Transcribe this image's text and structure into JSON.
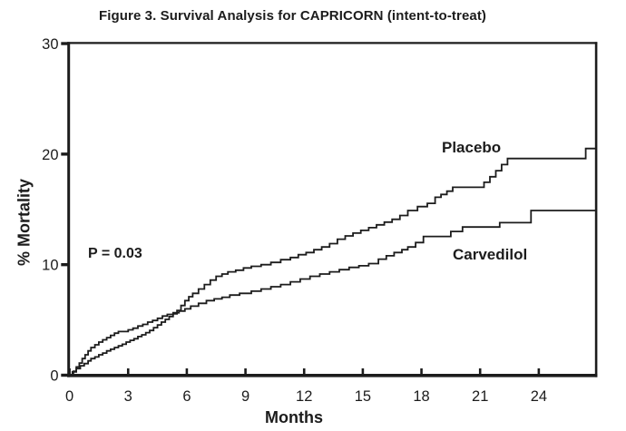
{
  "figure": {
    "title": "Figure 3. Survival Analysis for CAPRICORN (intent-to-treat)"
  },
  "chart_data": {
    "type": "line",
    "subtype": "kaplan-meier-step",
    "title": "Figure 3. Survival Analysis for CAPRICORN (intent-to-treat)",
    "xlabel": "Months",
    "ylabel": "% Mortality",
    "xlim": [
      0,
      27
    ],
    "ylim": [
      0,
      30
    ],
    "x_ticks": [
      0,
      3,
      6,
      9,
      12,
      15,
      18,
      21,
      24
    ],
    "y_ticks": [
      0,
      10,
      20,
      30
    ],
    "grid": false,
    "frame": "full-box",
    "annotation": "P = 0.03",
    "legend_position": "inline-labels",
    "colors": {
      "curve": "#1c1c1c",
      "text": "#1c1c1c",
      "background": "#ffffff"
    },
    "x_end": 26.9,
    "series": [
      {
        "name": "Placebo",
        "final_value_pct": 20.5,
        "points": [
          [
            0,
            0
          ],
          [
            0.15,
            0.3
          ],
          [
            0.35,
            0.6
          ],
          [
            0.55,
            0.85
          ],
          [
            0.75,
            1.05
          ],
          [
            0.95,
            1.3
          ],
          [
            1.1,
            1.5
          ],
          [
            1.3,
            1.65
          ],
          [
            1.5,
            1.85
          ],
          [
            1.7,
            2.0
          ],
          [
            1.9,
            2.2
          ],
          [
            2.1,
            2.35
          ],
          [
            2.3,
            2.5
          ],
          [
            2.5,
            2.65
          ],
          [
            2.7,
            2.8
          ],
          [
            2.9,
            3.0
          ],
          [
            3.1,
            3.15
          ],
          [
            3.3,
            3.3
          ],
          [
            3.5,
            3.5
          ],
          [
            3.7,
            3.65
          ],
          [
            3.9,
            3.85
          ],
          [
            4.1,
            4.05
          ],
          [
            4.3,
            4.3
          ],
          [
            4.5,
            4.55
          ],
          [
            4.7,
            4.8
          ],
          [
            4.9,
            5.05
          ],
          [
            5.1,
            5.3
          ],
          [
            5.3,
            5.55
          ],
          [
            5.5,
            5.85
          ],
          [
            5.7,
            6.3
          ],
          [
            5.9,
            6.75
          ],
          [
            6.1,
            7.1
          ],
          [
            6.3,
            7.4
          ],
          [
            6.6,
            7.8
          ],
          [
            6.9,
            8.2
          ],
          [
            7.2,
            8.6
          ],
          [
            7.5,
            8.95
          ],
          [
            7.8,
            9.15
          ],
          [
            8.1,
            9.35
          ],
          [
            8.5,
            9.5
          ],
          [
            8.9,
            9.7
          ],
          [
            9.3,
            9.85
          ],
          [
            9.8,
            10.0
          ],
          [
            10.3,
            10.2
          ],
          [
            10.8,
            10.45
          ],
          [
            11.3,
            10.65
          ],
          [
            11.7,
            10.9
          ],
          [
            12.1,
            11.1
          ],
          [
            12.5,
            11.35
          ],
          [
            12.9,
            11.6
          ],
          [
            13.3,
            11.9
          ],
          [
            13.7,
            12.3
          ],
          [
            14.1,
            12.6
          ],
          [
            14.5,
            12.85
          ],
          [
            14.9,
            13.1
          ],
          [
            15.3,
            13.35
          ],
          [
            15.7,
            13.6
          ],
          [
            16.1,
            13.85
          ],
          [
            16.5,
            14.1
          ],
          [
            16.9,
            14.45
          ],
          [
            17.3,
            14.9
          ],
          [
            17.8,
            15.25
          ],
          [
            18.3,
            15.55
          ],
          [
            18.7,
            16.1
          ],
          [
            19.0,
            16.35
          ],
          [
            19.3,
            16.65
          ],
          [
            19.6,
            17.0
          ],
          [
            21.2,
            17.45
          ],
          [
            21.5,
            17.95
          ],
          [
            21.8,
            18.5
          ],
          [
            22.1,
            19.05
          ],
          [
            22.4,
            19.6
          ],
          [
            26.4,
            20.5
          ]
        ]
      },
      {
        "name": "Carvedilol",
        "final_value_pct": 15.0,
        "points": [
          [
            0,
            0
          ],
          [
            0.2,
            0.35
          ],
          [
            0.35,
            0.75
          ],
          [
            0.5,
            1.1
          ],
          [
            0.65,
            1.5
          ],
          [
            0.8,
            1.85
          ],
          [
            0.95,
            2.2
          ],
          [
            1.1,
            2.5
          ],
          [
            1.3,
            2.75
          ],
          [
            1.5,
            3.0
          ],
          [
            1.7,
            3.2
          ],
          [
            1.9,
            3.4
          ],
          [
            2.1,
            3.6
          ],
          [
            2.3,
            3.8
          ],
          [
            2.5,
            3.95
          ],
          [
            3.0,
            4.1
          ],
          [
            3.25,
            4.25
          ],
          [
            3.5,
            4.45
          ],
          [
            3.75,
            4.6
          ],
          [
            4.0,
            4.8
          ],
          [
            4.25,
            4.95
          ],
          [
            4.5,
            5.15
          ],
          [
            4.75,
            5.35
          ],
          [
            5.0,
            5.5
          ],
          [
            5.3,
            5.65
          ],
          [
            5.6,
            5.8
          ],
          [
            5.9,
            6.0
          ],
          [
            6.2,
            6.25
          ],
          [
            6.6,
            6.5
          ],
          [
            7.0,
            6.75
          ],
          [
            7.4,
            6.9
          ],
          [
            7.8,
            7.05
          ],
          [
            8.2,
            7.25
          ],
          [
            8.7,
            7.4
          ],
          [
            9.3,
            7.6
          ],
          [
            9.8,
            7.8
          ],
          [
            10.3,
            8.0
          ],
          [
            10.8,
            8.2
          ],
          [
            11.3,
            8.45
          ],
          [
            11.8,
            8.7
          ],
          [
            12.3,
            8.95
          ],
          [
            12.8,
            9.15
          ],
          [
            13.3,
            9.35
          ],
          [
            13.8,
            9.55
          ],
          [
            14.3,
            9.75
          ],
          [
            14.8,
            9.9
          ],
          [
            15.3,
            10.1
          ],
          [
            15.8,
            10.5
          ],
          [
            16.2,
            10.8
          ],
          [
            16.6,
            11.1
          ],
          [
            17.0,
            11.35
          ],
          [
            17.3,
            11.6
          ],
          [
            17.7,
            12.0
          ],
          [
            18.1,
            12.55
          ],
          [
            19.5,
            13.0
          ],
          [
            20.1,
            13.4
          ],
          [
            22.0,
            13.8
          ],
          [
            23.6,
            14.9
          ]
        ]
      }
    ]
  }
}
